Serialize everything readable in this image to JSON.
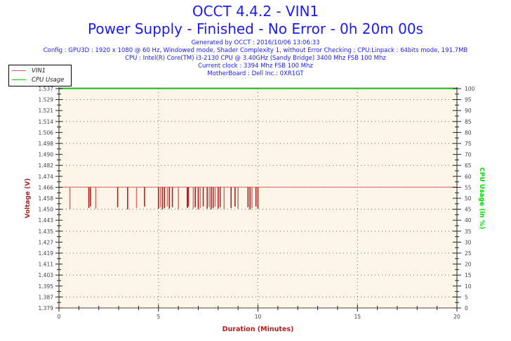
{
  "header": {
    "title": "OCCT 4.4.2 - VIN1",
    "subtitle": "Power Supply - Finished - No Error - 0h 20m 00s",
    "generated": "Generated by OCCT : 2016/10/06 13:06:33",
    "config": "Config : GPU3D : 1920 x 1080 @ 60 Hz, Windowed mode, Shader Complexity 1, without Error Checking ; CPU:Linpack : 64bits mode, 191.7MB",
    "cpu": "CPU : Intel(R) Core(TM) i3-2130 CPU @ 3.40GHz (Sandy Bridge) 3400 Mhz FSB 100 Mhz",
    "clock": "Current clock : 3394 Mhz FSB 100 Mhz",
    "motherboard": "MotherBoard : Dell Inc.: 0XR1GT"
  },
  "legend": {
    "items": [
      {
        "label": "VIN1",
        "color": "#d06060"
      },
      {
        "label": "CPU Usage",
        "color": "#00cc00"
      }
    ]
  },
  "colors": {
    "plot_bg": "#fdf6e8",
    "vin1": "#b02020",
    "vin1_light": "#d87070",
    "cpu": "#00cc00",
    "left_label": "#b02020",
    "right_label": "#00dd00",
    "xlabel": "#b02020",
    "tick_text": "#444444"
  },
  "chart_data": {
    "type": "line",
    "title": "OCCT 4.4.2 - VIN1",
    "subtitle": "Power Supply - Finished - No Error - 0h 20m 00s",
    "xlabel": "Duration (Minutes)",
    "ylabel": "Voltage (V)",
    "y2label": "CPU Usage (in %)",
    "xlim": [
      0,
      20
    ],
    "ylim": [
      1.379,
      1.537
    ],
    "y2lim": [
      0,
      100
    ],
    "x_ticks": [
      0,
      5,
      10,
      15,
      20
    ],
    "y_ticks": [
      "1.379",
      "1.387",
      "1.395",
      "1.403",
      "1.411",
      "1.419",
      "1.427",
      "1.435",
      "1.443",
      "1.450",
      "1.458",
      "1.466",
      "1.474",
      "1.482",
      "1.490",
      "1.498",
      "1.506",
      "1.514",
      "1.521",
      "1.529",
      "1.537"
    ],
    "y2_ticks": [
      0,
      5,
      10,
      15,
      20,
      25,
      30,
      35,
      40,
      45,
      50,
      55,
      60,
      65,
      70,
      75,
      80,
      85,
      90,
      95,
      100
    ],
    "grid": true,
    "legend_position": "top-left",
    "series": [
      {
        "name": "VIN1",
        "axis": "left",
        "baseline": 1.466,
        "dip_value": 1.45,
        "x_range": [
          0,
          10.1
        ],
        "dips_at_minutes": [
          0.55,
          1.5,
          1.58,
          1.85,
          2.95,
          3.45,
          3.9,
          4.3,
          5.0,
          5.1,
          5.2,
          5.3,
          5.45,
          5.55,
          5.7,
          6.0,
          6.45,
          6.5,
          6.75,
          6.85,
          7.0,
          7.1,
          7.25,
          7.45,
          7.55,
          7.65,
          7.75,
          7.85,
          8.0,
          8.1,
          8.3,
          8.65,
          8.85,
          9.0,
          9.5,
          9.6,
          9.7,
          9.9,
          10.0
        ]
      },
      {
        "name": "CPU Usage",
        "axis": "right",
        "x_range": [
          0,
          20
        ],
        "values_constant": 100
      }
    ]
  }
}
